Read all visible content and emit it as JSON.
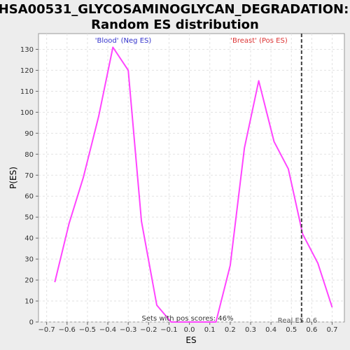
{
  "chart_data": {
    "type": "line",
    "title_line1": "HSA00531_GLYCOSAMINOGLYCAN_DEGRADATION:",
    "title_line2": "Random ES distribution",
    "xlabel": "ES",
    "ylabel": "P(ES)",
    "xlim": [
      -0.74,
      0.76
    ],
    "ylim": [
      0,
      137.5
    ],
    "x_ticks": [
      -0.7,
      -0.6,
      -0.5,
      -0.4,
      -0.3,
      -0.2,
      -0.1,
      0.0,
      0.1,
      0.2,
      0.3,
      0.4,
      0.5,
      0.6,
      0.7
    ],
    "x_tick_labels": [
      "−0.7",
      "−0.6",
      "−0.5",
      "−0.4",
      "−0.3",
      "−0.2",
      "−0.1",
      "0.0",
      "0.1",
      "0.2",
      "0.3",
      "0.4",
      "0.5",
      "0.6",
      "0.7"
    ],
    "y_ticks": [
      0,
      10,
      20,
      30,
      40,
      50,
      60,
      70,
      80,
      90,
      100,
      110,
      120,
      130
    ],
    "grid": true,
    "line_color": "#ff44ff",
    "series": [
      {
        "x": [
          -0.66,
          -0.59,
          -0.52,
          -0.445,
          -0.375,
          -0.3,
          -0.235,
          -0.16,
          -0.09,
          -0.02,
          0.05,
          0.13,
          0.2,
          0.27,
          0.34,
          0.415,
          0.485,
          0.555,
          0.63,
          0.7
        ],
        "y": [
          19,
          47,
          69,
          98,
          131,
          120,
          48,
          8,
          0,
          0,
          0,
          0,
          27,
          83,
          115,
          86,
          73,
          42,
          28,
          7
        ]
      }
    ],
    "real_es": 0.55,
    "real_es_color": "#404040",
    "annotations": {
      "neg_label": "'Blood' (Neg ES)",
      "neg_color": "#3333cc",
      "pos_label": "'Breast' (Pos ES)",
      "pos_color": "#dd3333",
      "pos_scores_text": "Sets with pos scores: 46%",
      "real_es_text": "Real ES 0.6"
    }
  }
}
